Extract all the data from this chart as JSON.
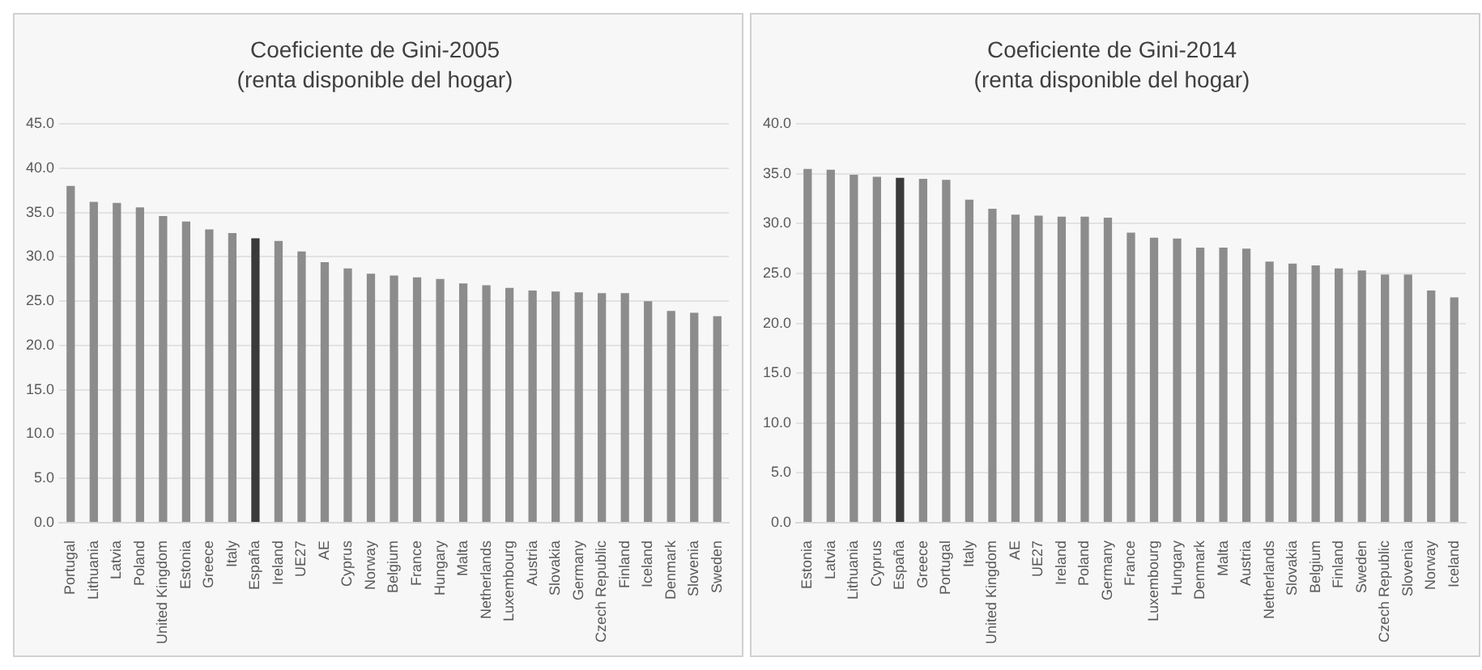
{
  "chart_data": [
    {
      "type": "bar",
      "title": "Coeficiente de Gini-2005",
      "subtitle": "(renta disponible del hogar)",
      "categories": [
        "Portugal",
        "Lithuania",
        "Latvia",
        "Poland",
        "United Kingdom",
        "Estonia",
        "Greece",
        "Italy",
        "España",
        "Ireland",
        "UE27",
        "AE",
        "Cyprus",
        "Norway",
        "Belgium",
        "France",
        "Hungary",
        "Malta",
        "Netherlands",
        "Luxembourg",
        "Austria",
        "Slovakia",
        "Germany",
        "Czech Republic",
        "Finland",
        "Iceland",
        "Denmark",
        "Slovenia",
        "Sweden"
      ],
      "values": [
        38.0,
        36.2,
        36.1,
        35.6,
        34.6,
        34.0,
        33.1,
        32.7,
        32.1,
        31.8,
        30.6,
        29.4,
        28.7,
        28.1,
        27.9,
        27.7,
        27.5,
        27.0,
        26.8,
        26.5,
        26.2,
        26.1,
        26.0,
        25.9,
        25.9,
        25.0,
        23.9,
        23.7,
        23.3
      ],
      "colors": [
        "#8c8c8c",
        "#8c8c8c",
        "#8c8c8c",
        "#8c8c8c",
        "#8c8c8c",
        "#8c8c8c",
        "#8c8c8c",
        "#8c8c8c",
        "#3a3a3a",
        "#8c8c8c",
        "#8c8c8c",
        "#8c8c8c",
        "#8c8c8c",
        "#8c8c8c",
        "#8c8c8c",
        "#8c8c8c",
        "#8c8c8c",
        "#8c8c8c",
        "#8c8c8c",
        "#8c8c8c",
        "#8c8c8c",
        "#8c8c8c",
        "#8c8c8c",
        "#8c8c8c",
        "#8c8c8c",
        "#8c8c8c",
        "#8c8c8c",
        "#8c8c8c",
        "#8c8c8c"
      ],
      "ylim": [
        0,
        45
      ],
      "yticks": [
        {
          "value": 0,
          "label": "0.0"
        },
        {
          "value": 5,
          "label": "5.0"
        },
        {
          "value": 10,
          "label": "10.0"
        },
        {
          "value": 15,
          "label": "15.0"
        },
        {
          "value": 20,
          "label": "20.0"
        },
        {
          "value": 25,
          "label": "25.0"
        },
        {
          "value": 30,
          "label": "30.0"
        },
        {
          "value": 35,
          "label": "35.0"
        },
        {
          "value": 40,
          "label": "40.0"
        },
        {
          "value": 45,
          "label": "45.0"
        }
      ],
      "grid": "y",
      "legend": false
    },
    {
      "type": "bar",
      "title": "Coeficiente de Gini-2014",
      "subtitle": "(renta disponible del hogar)",
      "categories": [
        "Estonia",
        "Latvia",
        "Lithuania",
        "Cyprus",
        "España",
        "Greece",
        "Portugal",
        "Italy",
        "United Kingdom",
        "AE",
        "UE27",
        "Ireland",
        "Poland",
        "Germany",
        "France",
        "Luxembourg",
        "Hungary",
        "Denmark",
        "Malta",
        "Austria",
        "Netherlands",
        "Slovakia",
        "Belgium",
        "Finland",
        "Sweden",
        "Czech Republic",
        "Slovenia",
        "Norway",
        "Iceland"
      ],
      "values": [
        35.5,
        35.4,
        34.9,
        34.7,
        34.6,
        34.5,
        34.4,
        32.4,
        31.5,
        30.9,
        30.8,
        30.7,
        30.7,
        30.6,
        29.1,
        28.6,
        28.5,
        27.6,
        27.6,
        27.5,
        26.2,
        26.0,
        25.8,
        25.5,
        25.3,
        24.9,
        24.9,
        23.3,
        22.6
      ],
      "colors": [
        "#8c8c8c",
        "#8c8c8c",
        "#8c8c8c",
        "#8c8c8c",
        "#3a3a3a",
        "#8c8c8c",
        "#8c8c8c",
        "#8c8c8c",
        "#8c8c8c",
        "#8c8c8c",
        "#8c8c8c",
        "#8c8c8c",
        "#8c8c8c",
        "#8c8c8c",
        "#8c8c8c",
        "#8c8c8c",
        "#8c8c8c",
        "#8c8c8c",
        "#8c8c8c",
        "#8c8c8c",
        "#8c8c8c",
        "#8c8c8c",
        "#8c8c8c",
        "#8c8c8c",
        "#8c8c8c",
        "#8c8c8c",
        "#8c8c8c",
        "#8c8c8c",
        "#8c8c8c"
      ],
      "ylim": [
        0,
        40
      ],
      "yticks": [
        {
          "value": 0,
          "label": "0.0"
        },
        {
          "value": 5,
          "label": "5.0"
        },
        {
          "value": 10,
          "label": "10.0"
        },
        {
          "value": 15,
          "label": "15.0"
        },
        {
          "value": 20,
          "label": "20.0"
        },
        {
          "value": 25,
          "label": "25.0"
        },
        {
          "value": 30,
          "label": "30.0"
        },
        {
          "value": 35,
          "label": "35.0"
        },
        {
          "value": 40,
          "label": "40.0"
        }
      ],
      "grid": "y",
      "legend": false
    }
  ]
}
